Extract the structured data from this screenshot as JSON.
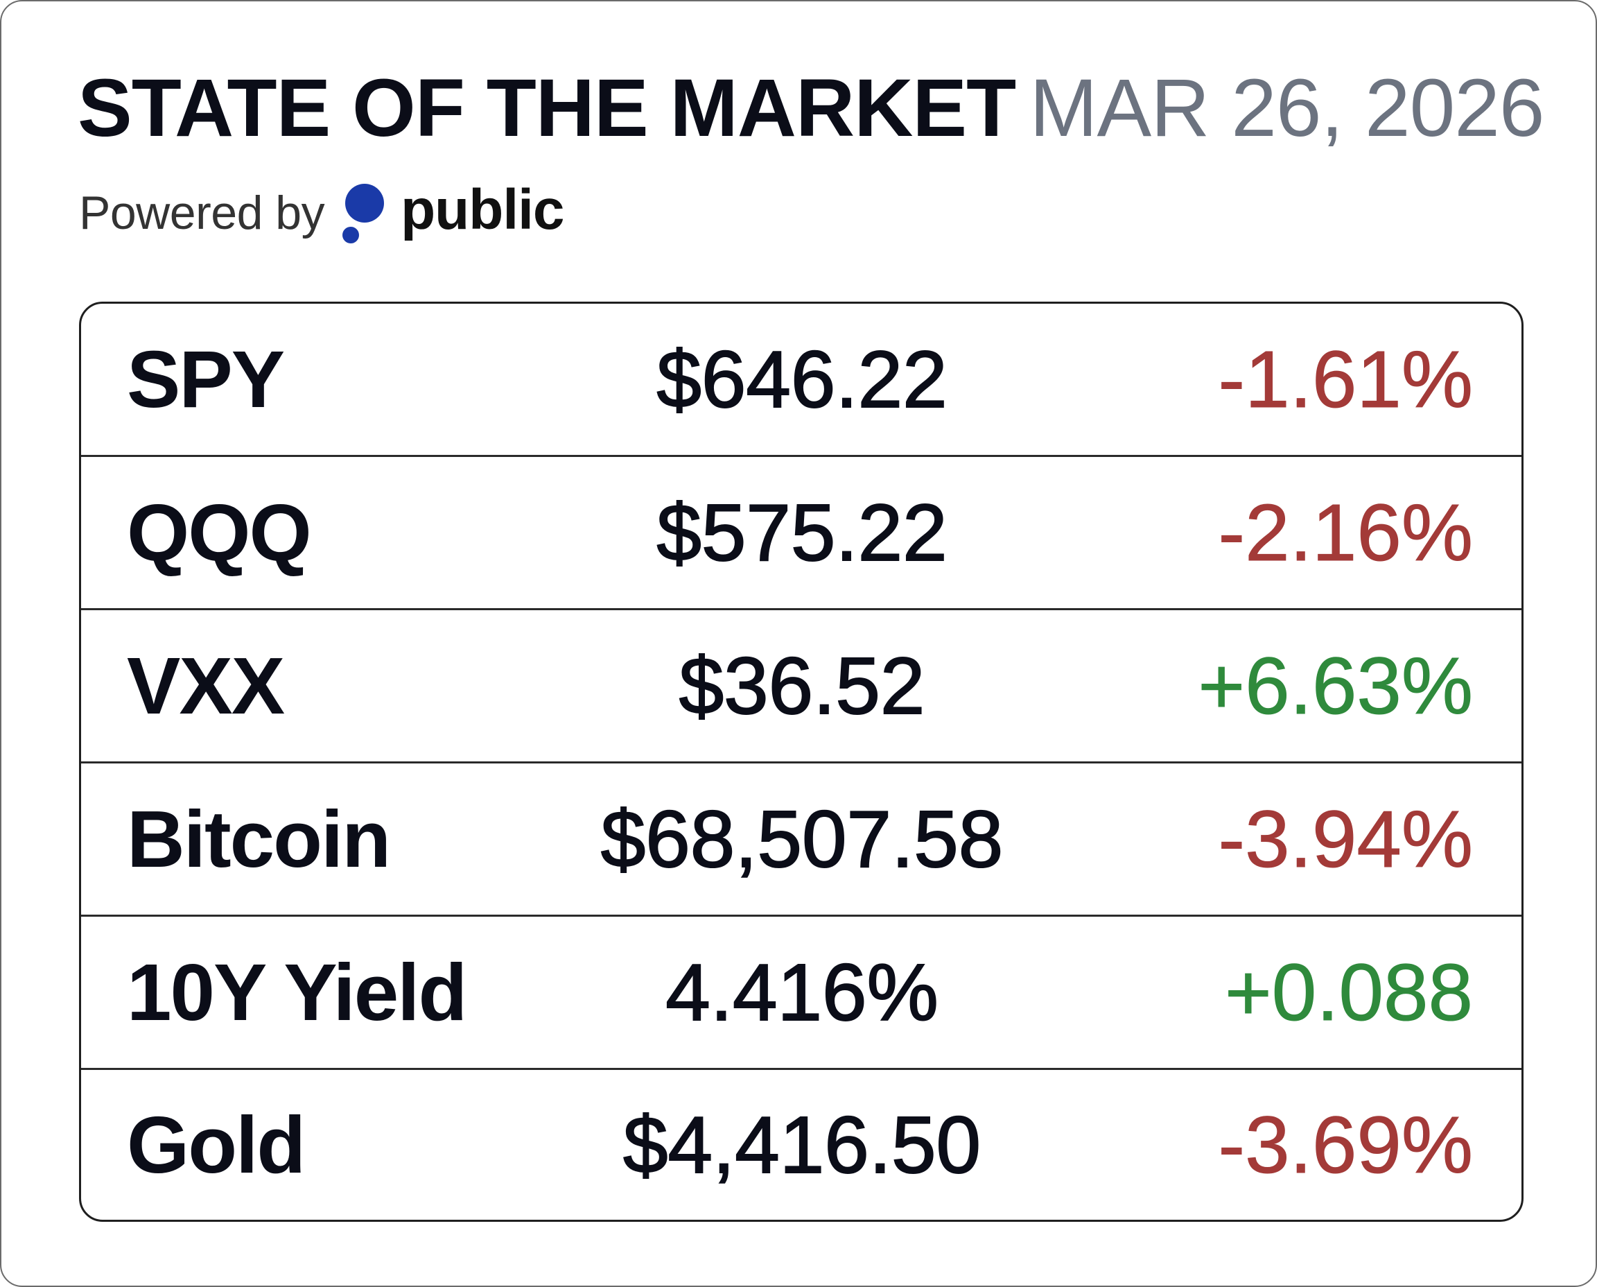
{
  "header": {
    "title": "STATE OF THE MARKET",
    "date": "MAR 26, 2026",
    "powered_by_label": "Powered by",
    "brand_name": "public",
    "brand_logo_icon": "public-logo-icon",
    "brand_color": "#1a3aa8"
  },
  "colors": {
    "negative": "#a33a38",
    "positive": "#2f8a3c"
  },
  "rows": [
    {
      "name": "SPY",
      "price": "$646.22",
      "change": "-1.61%",
      "direction": "negative"
    },
    {
      "name": "QQQ",
      "price": "$575.22",
      "change": "-2.16%",
      "direction": "negative"
    },
    {
      "name": "VXX",
      "price": "$36.52",
      "change": "+6.63%",
      "direction": "positive"
    },
    {
      "name": "Bitcoin",
      "price": "$68,507.58",
      "change": "-3.94%",
      "direction": "negative"
    },
    {
      "name": "10Y Yield",
      "price": "4.416%",
      "change": "+0.088",
      "direction": "positive"
    },
    {
      "name": "Gold",
      "price": "$4,416.50",
      "change": "-3.69%",
      "direction": "negative"
    }
  ]
}
